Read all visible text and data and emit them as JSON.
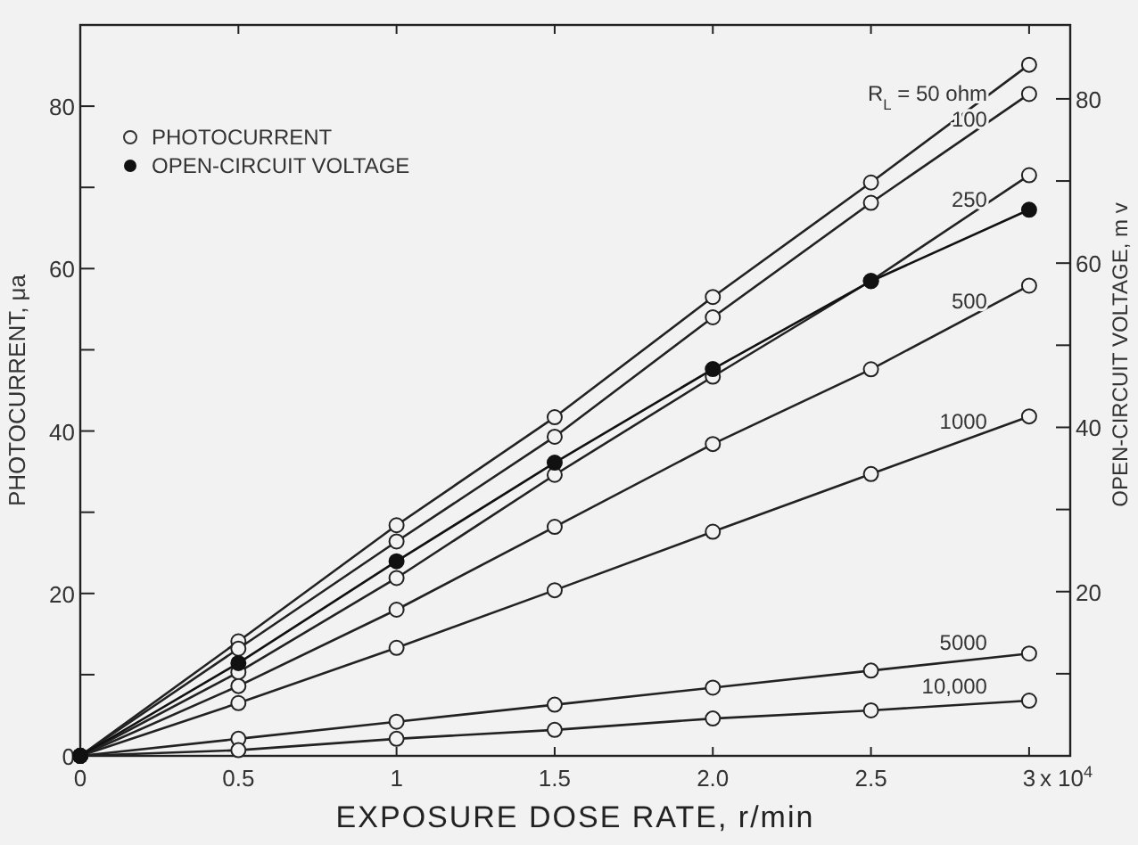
{
  "chart_data": {
    "type": "line",
    "xlabel": "EXPOSURE DOSE RATE, r/min",
    "ylabel": "PHOTOCURRENT, μa",
    "y2label": "OPEN-CIRCUIT VOLTAGE, m v",
    "x": [
      0,
      0.5,
      1,
      1.5,
      2,
      2.5,
      3
    ],
    "xlim": [
      0,
      3.13
    ],
    "xticks": [
      0,
      0.5,
      1,
      1.5,
      {
        "value": 2,
        "label": "2.0"
      },
      {
        "value": 2.5,
        "label": "2.5"
      },
      3
    ],
    "ylim": [
      0,
      90
    ],
    "yticks": [
      0,
      {
        "value": 10,
        "label": null
      },
      20,
      {
        "value": 30,
        "label": null
      },
      40,
      {
        "value": 50,
        "label": null
      },
      60,
      {
        "value": 70,
        "label": null
      },
      80
    ],
    "y2lim": [
      0,
      89
    ],
    "y2ticks": [
      {
        "value": 10,
        "label": null
      },
      20,
      {
        "value": 30,
        "label": null
      },
      40,
      {
        "value": 50,
        "label": null
      },
      60,
      {
        "value": 70,
        "label": null
      },
      80
    ],
    "marker": "circle",
    "legend": "top left",
    "grid": false,
    "series": [
      {
        "name": "R$_{L}$ = 50 ohm",
        "color": "#222222",
        "values": [
          0,
          14.1,
          28.4,
          41.7,
          56.5,
          70.6,
          85.1
        ]
      },
      {
        "name": "100",
        "color": "#222222",
        "values": [
          0,
          13.2,
          26.4,
          39.3,
          54.0,
          68.1,
          81.5
        ]
      },
      {
        "name": "250",
        "color": "#222222",
        "values": [
          0,
          10.3,
          21.9,
          34.6,
          46.7,
          58.5,
          71.5
        ]
      },
      {
        "name": "500",
        "color": "#222222",
        "values": [
          0,
          8.6,
          18.0,
          28.2,
          38.4,
          47.6,
          57.9
        ]
      },
      {
        "name": "1000",
        "color": "#222222",
        "values": [
          0,
          6.5,
          13.3,
          20.4,
          27.6,
          34.7,
          41.8
        ]
      },
      {
        "name": "5000",
        "color": "#222222",
        "values": [
          0,
          2.1,
          4.2,
          6.3,
          8.4,
          10.5,
          12.6
        ]
      },
      {
        "name": "10,000",
        "color": "#222222",
        "values": [
          0,
          0.7,
          2.1,
          3.2,
          4.6,
          5.6,
          6.8
        ]
      },
      {
        "name": "OPEN-CIRCUIT VOLTAGE",
        "color": "#111111",
        "axis": "y2",
        "values": [
          0,
          11.3,
          23.7,
          35.7,
          47.1,
          57.8,
          66.5
        ]
      }
    ],
    "annotations": [
      "PHOTOCURRENT",
      "x 10$^{4}$"
    ]
  }
}
